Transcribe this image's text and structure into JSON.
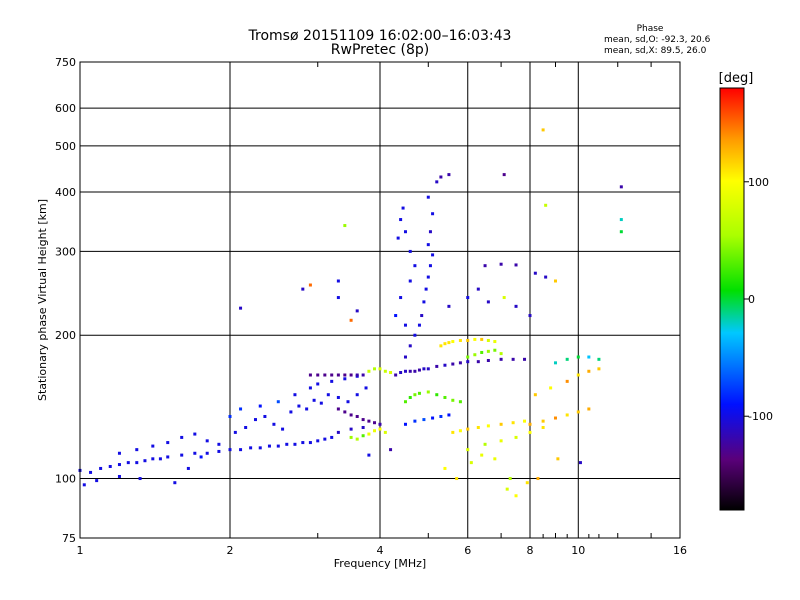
{
  "header": {
    "title_line1": "Tromsø 20151109 16:02:00–16:03:43",
    "title_line2": "RwPretec (8p)",
    "phase_heading": "Phase",
    "phase_o": "mean, sd,O: -92.3, 20.6",
    "phase_x": "mean, sd,X:  89.5, 26.0"
  },
  "colorbar": {
    "unit": "[deg]",
    "ticks": [
      "100",
      "0",
      "-100"
    ],
    "tick_values": [
      100,
      0,
      -100
    ],
    "range": [
      -180,
      180
    ]
  },
  "chart_data": {
    "type": "scatter",
    "title": "Tromsø 20151109 16:02:00–16:03:43",
    "subtitle": "RwPretec (8p)",
    "xlabel": "Frequency [MHz]",
    "ylabel": "Stationary phase Virtual Height [km]",
    "x_scale": "log",
    "y_scale": "log",
    "xlim": [
      1,
      16
    ],
    "ylim": [
      75,
      750
    ],
    "x_ticks": [
      1,
      2,
      4,
      6,
      8,
      10,
      16
    ],
    "x_tick_labels": [
      "1",
      "2",
      "4",
      "6",
      "8",
      "10",
      "16"
    ],
    "y_ticks": [
      75,
      100,
      200,
      300,
      400,
      500,
      600,
      750
    ],
    "y_tick_labels": [
      "75",
      "100",
      "200",
      "300",
      "400",
      "500",
      "600",
      "750"
    ],
    "grid": true,
    "color_by": "phase [deg]",
    "points": [
      [
        1.0,
        104,
        -100
      ],
      [
        1.05,
        103,
        -100
      ],
      [
        1.1,
        105,
        -100
      ],
      [
        1.15,
        106,
        -100
      ],
      [
        1.2,
        107,
        -100
      ],
      [
        1.25,
        108,
        -100
      ],
      [
        1.3,
        108,
        -100
      ],
      [
        1.35,
        109,
        -100
      ],
      [
        1.4,
        110,
        -100
      ],
      [
        1.45,
        110,
        -100
      ],
      [
        1.5,
        111,
        -100
      ],
      [
        1.6,
        112,
        -100
      ],
      [
        1.7,
        113,
        -100
      ],
      [
        1.8,
        113,
        -100
      ],
      [
        1.9,
        114,
        -100
      ],
      [
        2.0,
        115,
        -100
      ],
      [
        2.1,
        115,
        -100
      ],
      [
        2.2,
        116,
        -100
      ],
      [
        2.3,
        116,
        -100
      ],
      [
        2.4,
        117,
        -100
      ],
      [
        2.5,
        117,
        -100
      ],
      [
        2.6,
        118,
        -100
      ],
      [
        2.7,
        118,
        -100
      ],
      [
        2.8,
        119,
        -100
      ],
      [
        2.9,
        119,
        -100
      ],
      [
        3.0,
        120,
        -100
      ],
      [
        3.1,
        121,
        -100
      ],
      [
        3.2,
        122,
        -100
      ],
      [
        1.02,
        97,
        -100
      ],
      [
        1.08,
        99,
        -100
      ],
      [
        1.2,
        101,
        -100
      ],
      [
        1.32,
        100,
        -100
      ],
      [
        1.55,
        98,
        -100
      ],
      [
        1.65,
        105,
        -100
      ],
      [
        1.75,
        111,
        -90
      ],
      [
        1.2,
        113,
        -100
      ],
      [
        1.3,
        115,
        -100
      ],
      [
        1.4,
        117,
        -100
      ],
      [
        1.5,
        119,
        -100
      ],
      [
        1.6,
        122,
        -100
      ],
      [
        1.7,
        124,
        -100
      ],
      [
        1.8,
        120,
        -100
      ],
      [
        1.9,
        118,
        -100
      ],
      [
        2.05,
        125,
        -100
      ],
      [
        2.15,
        128,
        -100
      ],
      [
        2.25,
        133,
        -100
      ],
      [
        2.35,
        135,
        -100
      ],
      [
        2.45,
        130,
        -100
      ],
      [
        2.55,
        127,
        -100
      ],
      [
        2.65,
        138,
        -100
      ],
      [
        2.75,
        142,
        -100
      ],
      [
        2.85,
        140,
        -100
      ],
      [
        2.95,
        146,
        -100
      ],
      [
        3.05,
        144,
        -100
      ],
      [
        3.15,
        150,
        -100
      ],
      [
        3.3,
        148,
        -100
      ],
      [
        3.45,
        145,
        -100
      ],
      [
        3.6,
        150,
        -100
      ],
      [
        3.75,
        155,
        -100
      ],
      [
        2.0,
        135,
        -80
      ],
      [
        2.1,
        140,
        -80
      ],
      [
        2.3,
        142,
        -90
      ],
      [
        2.5,
        145,
        -70
      ],
      [
        2.7,
        150,
        -100
      ],
      [
        2.9,
        155,
        -100
      ],
      [
        3.0,
        158,
        -100
      ],
      [
        3.2,
        160,
        -100
      ],
      [
        3.4,
        162,
        -100
      ],
      [
        3.6,
        164,
        -100
      ],
      [
        2.9,
        165,
        -130
      ],
      [
        3.0,
        165,
        -130
      ],
      [
        3.1,
        165,
        -130
      ],
      [
        3.2,
        165,
        -130
      ],
      [
        3.3,
        165,
        -130
      ],
      [
        3.4,
        165,
        -130
      ],
      [
        3.5,
        165,
        -130
      ],
      [
        3.6,
        165,
        -120
      ],
      [
        3.7,
        165,
        -120
      ],
      [
        3.8,
        168,
        70
      ],
      [
        3.9,
        170,
        60
      ],
      [
        4.0,
        170,
        80
      ],
      [
        4.1,
        168,
        70
      ],
      [
        4.2,
        167,
        80
      ],
      [
        3.3,
        140,
        -130
      ],
      [
        3.4,
        138,
        -130
      ],
      [
        3.5,
        136,
        -130
      ],
      [
        3.6,
        135,
        -130
      ],
      [
        3.7,
        133,
        -130
      ],
      [
        3.8,
        132,
        -130
      ],
      [
        3.9,
        131,
        -130
      ],
      [
        4.0,
        130,
        -120
      ],
      [
        3.3,
        125,
        -110
      ],
      [
        3.5,
        127,
        -110
      ],
      [
        3.7,
        128,
        -110
      ],
      [
        3.9,
        126,
        90
      ],
      [
        4.0,
        127,
        100
      ],
      [
        4.1,
        125,
        80
      ],
      [
        3.5,
        122,
        50
      ],
      [
        3.6,
        121,
        60
      ],
      [
        3.7,
        123,
        30
      ],
      [
        3.8,
        124,
        90
      ],
      [
        4.3,
        165,
        -120
      ],
      [
        4.4,
        167,
        -110
      ],
      [
        4.5,
        168,
        -110
      ],
      [
        4.6,
        168,
        -120
      ],
      [
        4.7,
        168,
        -120
      ],
      [
        4.8,
        169,
        -120
      ],
      [
        4.9,
        170,
        -110
      ],
      [
        5.0,
        170,
        -110
      ],
      [
        5.2,
        172,
        -120
      ],
      [
        5.4,
        173,
        -110
      ],
      [
        5.6,
        174,
        -120
      ],
      [
        5.8,
        175,
        -120
      ],
      [
        6.0,
        176,
        -110
      ],
      [
        6.3,
        176,
        -120
      ],
      [
        6.6,
        177,
        -120
      ],
      [
        7.0,
        178,
        -120
      ],
      [
        7.4,
        178,
        -120
      ],
      [
        7.8,
        178,
        -120
      ],
      [
        4.5,
        180,
        -110
      ],
      [
        4.6,
        190,
        -110
      ],
      [
        4.7,
        200,
        -100
      ],
      [
        4.8,
        210,
        -100
      ],
      [
        4.85,
        220,
        -110
      ],
      [
        4.9,
        235,
        -100
      ],
      [
        4.95,
        250,
        -100
      ],
      [
        5.0,
        265,
        -100
      ],
      [
        5.05,
        280,
        -100
      ],
      [
        5.1,
        295,
        -100
      ],
      [
        5.0,
        310,
        -100
      ],
      [
        5.05,
        330,
        -110
      ],
      [
        5.1,
        360,
        -100
      ],
      [
        5.0,
        390,
        -100
      ],
      [
        5.2,
        420,
        -110
      ],
      [
        5.3,
        430,
        -120
      ],
      [
        5.5,
        435,
        -120
      ],
      [
        4.35,
        320,
        -100
      ],
      [
        4.4,
        350,
        -100
      ],
      [
        4.45,
        370,
        -100
      ],
      [
        4.5,
        330,
        -100
      ],
      [
        4.6,
        300,
        -100
      ],
      [
        4.7,
        280,
        -100
      ],
      [
        4.6,
        260,
        -100
      ],
      [
        4.4,
        240,
        -100
      ],
      [
        4.3,
        220,
        -90
      ],
      [
        4.5,
        210,
        -100
      ],
      [
        5.3,
        190,
        110
      ],
      [
        5.4,
        192,
        110
      ],
      [
        5.5,
        193,
        110
      ],
      [
        5.6,
        194,
        100
      ],
      [
        5.8,
        195,
        110
      ],
      [
        6.0,
        195,
        120
      ],
      [
        6.2,
        196,
        100
      ],
      [
        6.4,
        196,
        120
      ],
      [
        6.6,
        195,
        80
      ],
      [
        6.8,
        194,
        90
      ],
      [
        6.0,
        180,
        40
      ],
      [
        6.2,
        182,
        50
      ],
      [
        6.4,
        184,
        30
      ],
      [
        6.6,
        185,
        50
      ],
      [
        6.8,
        186,
        40
      ],
      [
        7.0,
        183,
        60
      ],
      [
        4.5,
        145,
        30
      ],
      [
        4.6,
        148,
        20
      ],
      [
        4.7,
        150,
        40
      ],
      [
        4.8,
        151,
        30
      ],
      [
        5.0,
        152,
        50
      ],
      [
        5.2,
        150,
        20
      ],
      [
        5.4,
        148,
        30
      ],
      [
        5.6,
        146,
        40
      ],
      [
        5.8,
        145,
        30
      ],
      [
        4.5,
        130,
        -90
      ],
      [
        4.7,
        132,
        -80
      ],
      [
        4.9,
        133,
        -70
      ],
      [
        5.1,
        134,
        -90
      ],
      [
        5.3,
        135,
        -80
      ],
      [
        5.5,
        136,
        -90
      ],
      [
        5.6,
        125,
        110
      ],
      [
        5.8,
        126,
        100
      ],
      [
        6.0,
        127,
        120
      ],
      [
        6.3,
        128,
        110
      ],
      [
        6.6,
        129,
        100
      ],
      [
        7.0,
        130,
        120
      ],
      [
        7.4,
        131,
        110
      ],
      [
        7.8,
        132,
        100
      ],
      [
        6.0,
        115,
        80
      ],
      [
        6.5,
        118,
        60
      ],
      [
        7.0,
        120,
        90
      ],
      [
        7.5,
        122,
        80
      ],
      [
        8.0,
        125,
        100
      ],
      [
        8.5,
        128,
        110
      ],
      [
        8.0,
        130,
        130
      ],
      [
        8.5,
        132,
        120
      ],
      [
        9.0,
        134,
        140
      ],
      [
        9.5,
        136,
        110
      ],
      [
        10.0,
        138,
        120
      ],
      [
        10.5,
        140,
        130
      ],
      [
        8.2,
        150,
        120
      ],
      [
        8.8,
        155,
        100
      ],
      [
        9.5,
        160,
        140
      ],
      [
        10.0,
        165,
        110
      ],
      [
        10.5,
        168,
        130
      ],
      [
        11.0,
        170,
        120
      ],
      [
        9.0,
        175,
        -20
      ],
      [
        9.5,
        178,
        -10
      ],
      [
        10.0,
        180,
        0
      ],
      [
        10.5,
        180,
        -30
      ],
      [
        11.0,
        178,
        -10
      ],
      [
        6.5,
        280,
        -120
      ],
      [
        7.0,
        282,
        -120
      ],
      [
        7.5,
        281,
        -120
      ],
      [
        8.2,
        270,
        -110
      ],
      [
        8.6,
        265,
        -110
      ],
      [
        9.0,
        260,
        120
      ],
      [
        5.5,
        230,
        -110
      ],
      [
        6.0,
        240,
        -100
      ],
      [
        6.3,
        250,
        -110
      ],
      [
        6.6,
        235,
        -110
      ],
      [
        7.1,
        240,
        80
      ],
      [
        7.5,
        230,
        -110
      ],
      [
        8.0,
        220,
        -110
      ],
      [
        2.1,
        228,
        -110
      ],
      [
        2.8,
        250,
        -110
      ],
      [
        2.9,
        255,
        150
      ],
      [
        3.3,
        260,
        -100
      ],
      [
        3.3,
        240,
        -100
      ],
      [
        3.5,
        215,
        150
      ],
      [
        3.6,
        225,
        -110
      ],
      [
        3.4,
        340,
        50
      ],
      [
        7.1,
        435,
        -130
      ],
      [
        8.5,
        540,
        120
      ],
      [
        8.6,
        375,
        70
      ],
      [
        12.2,
        410,
        -120
      ],
      [
        12.2,
        350,
        -20
      ],
      [
        12.2,
        330,
        0
      ],
      [
        7.3,
        100,
        60
      ],
      [
        7.2,
        95,
        80
      ],
      [
        7.5,
        92,
        100
      ],
      [
        7.9,
        98,
        110
      ],
      [
        8.3,
        100,
        130
      ],
      [
        9.1,
        110,
        120
      ],
      [
        10.1,
        108,
        -110
      ],
      [
        6.8,
        110,
        90
      ],
      [
        5.4,
        105,
        100
      ],
      [
        5.7,
        100,
        110
      ],
      [
        6.1,
        108,
        80
      ],
      [
        6.4,
        112,
        90
      ],
      [
        4.2,
        115,
        -120
      ],
      [
        3.8,
        112,
        -100
      ]
    ]
  }
}
